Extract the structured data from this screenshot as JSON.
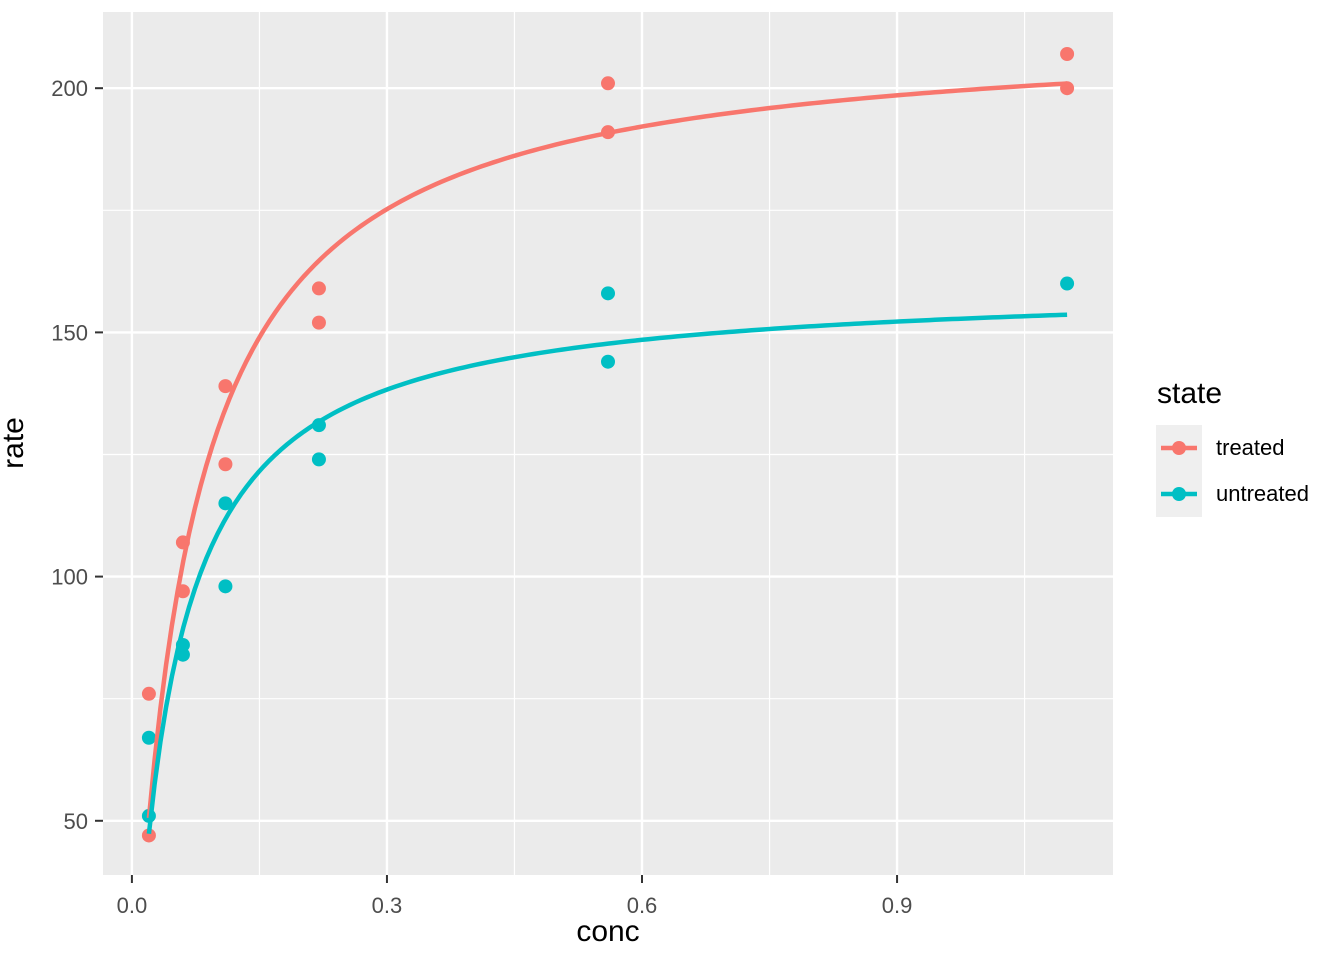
{
  "chart_data": {
    "type": "scatter",
    "title": "",
    "xlabel": "conc",
    "ylabel": "rate",
    "x_ticks": [
      0.0,
      0.3,
      0.6,
      0.9
    ],
    "x_tick_labels": [
      "0.0",
      "0.3",
      "0.6",
      "0.9"
    ],
    "y_ticks": [
      50,
      100,
      150,
      200
    ],
    "y_tick_labels": [
      "50",
      "100",
      "150",
      "200"
    ],
    "x_minor_ticks": [
      0.15,
      0.45,
      0.75,
      1.05
    ],
    "y_minor_ticks": [
      75,
      125,
      175
    ],
    "xlim": [
      -0.034,
      1.154
    ],
    "ylim": [
      38.9,
      215.6
    ],
    "grid": true,
    "legend": {
      "title": "state",
      "position": "right"
    },
    "series": [
      {
        "name": "treated",
        "color": "#F8766D",
        "x": [
          0.02,
          0.02,
          0.06,
          0.06,
          0.11,
          0.11,
          0.22,
          0.22,
          0.56,
          0.56,
          1.1,
          1.1
        ],
        "y": [
          76,
          47,
          97,
          107,
          123,
          139,
          159,
          152,
          191,
          201,
          207,
          200
        ],
        "fit": {
          "type": "michaelis-menten",
          "Vm": 212.68,
          "K": 0.06412,
          "range": [
            0.02,
            1.1
          ]
        }
      },
      {
        "name": "untreated",
        "color": "#00BFC4",
        "x": [
          0.02,
          0.02,
          0.06,
          0.06,
          0.11,
          0.11,
          0.22,
          0.22,
          0.56,
          0.56,
          1.1
        ],
        "y": [
          67,
          51,
          84,
          86,
          98,
          115,
          131,
          124,
          144,
          158,
          160
        ],
        "fit": {
          "type": "michaelis-menten",
          "Vm": 160.28,
          "K": 0.04771,
          "range": [
            0.02,
            1.1
          ]
        }
      }
    ],
    "colors": {
      "panel_bg": "#EBEBEB",
      "grid": "#FFFFFF",
      "tick_marks": "#333333",
      "tick_labels": "#4D4D4D",
      "axis_titles": "#000000",
      "legend_key_bg": "#EFEFEF"
    }
  }
}
